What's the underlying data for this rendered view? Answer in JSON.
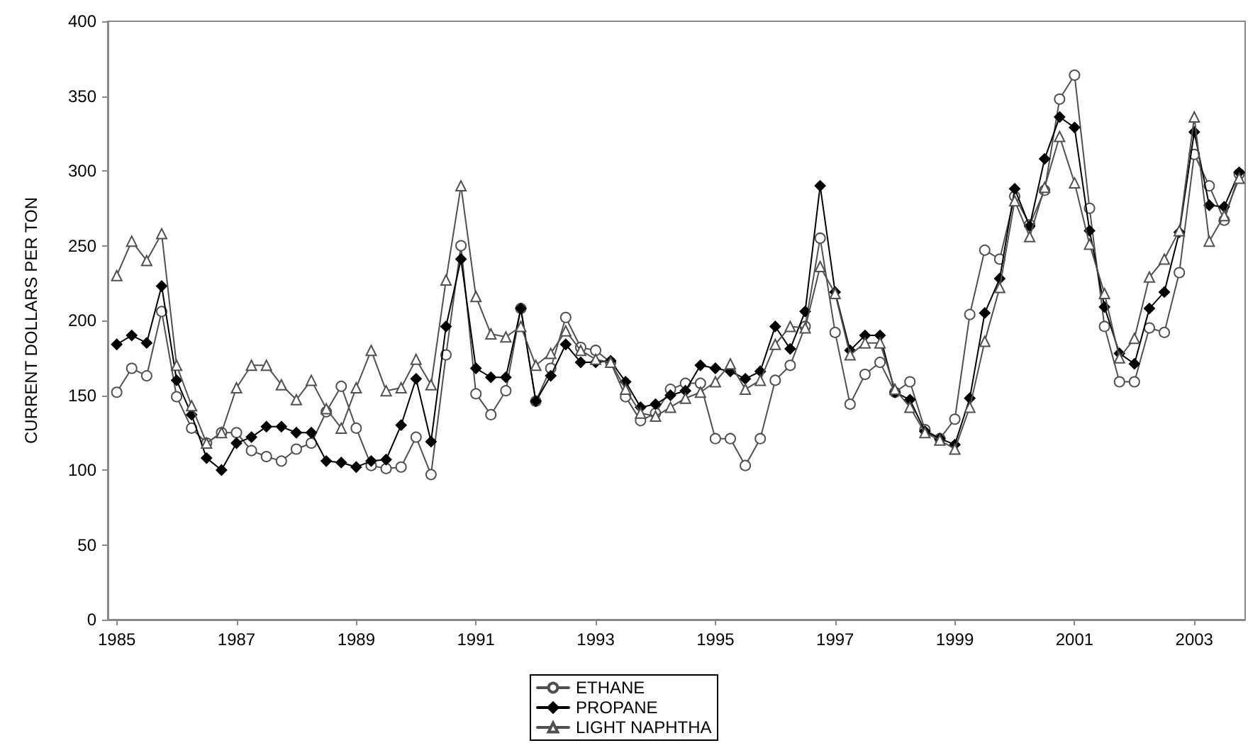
{
  "chart_data": {
    "type": "line",
    "ylabel": "CURRENT DOLLARS PER TON",
    "x": [
      1985,
      1985.25,
      1985.5,
      1985.75,
      1986,
      1986.25,
      1986.5,
      1986.75,
      1987,
      1987.25,
      1987.5,
      1987.75,
      1988,
      1988.25,
      1988.5,
      1988.75,
      1989,
      1989.25,
      1989.5,
      1989.75,
      1990,
      1990.25,
      1990.5,
      1990.75,
      1991,
      1991.25,
      1991.5,
      1991.75,
      1992,
      1992.25,
      1992.5,
      1992.75,
      1993,
      1993.25,
      1993.5,
      1993.75,
      1994,
      1994.25,
      1994.5,
      1994.75,
      1995,
      1995.25,
      1995.5,
      1995.75,
      1996,
      1996.25,
      1996.5,
      1996.75,
      1997,
      1997.25,
      1997.5,
      1997.75,
      1998,
      1998.25,
      1998.5,
      1998.75,
      1999,
      1999.25,
      1999.5,
      1999.75,
      2000,
      2000.25,
      2000.5,
      2000.75,
      2001,
      2001.25,
      2001.5,
      2001.75,
      2002,
      2002.25,
      2002.5,
      2002.75,
      2003,
      2003.25,
      2003.5,
      2003.75
    ],
    "series": [
      {
        "name": "ETHANE",
        "color": "#505050",
        "marker": "circle",
        "values": [
          152,
          168,
          163,
          206,
          149,
          128,
          118,
          125,
          125,
          113,
          109,
          106,
          114,
          118,
          139,
          156,
          128,
          103,
          101,
          102,
          122,
          97,
          177,
          250,
          151,
          137,
          153,
          208,
          146,
          168,
          202,
          182,
          180,
          172,
          149,
          133,
          138,
          154,
          158,
          158,
          121,
          121,
          103,
          121,
          160,
          170,
          196,
          255,
          192,
          144,
          164,
          172,
          152,
          159,
          127,
          121,
          134,
          204,
          247,
          241,
          283,
          264,
          287,
          348,
          364,
          275,
          196,
          159,
          159,
          195,
          192,
          232,
          311,
          290,
          267,
          298
        ]
      },
      {
        "name": "PROPANE",
        "color": "#000000",
        "marker": "diamond",
        "values": [
          184,
          190,
          185,
          223,
          160,
          137,
          108,
          100,
          118,
          122,
          129,
          129,
          125,
          125,
          106,
          105,
          102,
          106,
          107,
          130,
          161,
          119,
          196,
          241,
          168,
          162,
          162,
          208,
          146,
          163,
          184,
          172,
          172,
          173,
          159,
          142,
          144,
          150,
          153,
          170,
          168,
          166,
          161,
          166,
          196,
          181,
          206,
          290,
          219,
          180,
          190,
          190,
          152,
          147,
          126,
          121,
          117,
          148,
          205,
          228,
          288,
          263,
          308,
          336,
          329,
          260,
          209,
          178,
          171,
          208,
          219,
          259,
          326,
          277,
          276,
          299
        ]
      },
      {
        "name": "LIGHT NAPHTHA",
        "color": "#505050",
        "marker": "triangle",
        "values": [
          230,
          253,
          240,
          258,
          170,
          143,
          118,
          125,
          155,
          170,
          170,
          157,
          147,
          160,
          141,
          128,
          155,
          180,
          153,
          155,
          174,
          157,
          227,
          290,
          216,
          191,
          189,
          196,
          170,
          178,
          193,
          180,
          174,
          172,
          154,
          138,
          136,
          142,
          148,
          152,
          159,
          171,
          154,
          160,
          184,
          196,
          195,
          236,
          218,
          177,
          185,
          185,
          154,
          142,
          125,
          120,
          114,
          142,
          186,
          222,
          280,
          256,
          289,
          323,
          292,
          251,
          218,
          175,
          188,
          229,
          241,
          260,
          336,
          253,
          270,
          295
        ]
      }
    ],
    "xlim": [
      1984.85,
      2003.85
    ],
    "xticks": [
      1985,
      1987,
      1989,
      1991,
      1993,
      1995,
      1997,
      1999,
      2001,
      2003
    ],
    "ylim": [
      0,
      400
    ],
    "yticks": [
      0,
      50,
      100,
      150,
      200,
      250,
      300,
      350,
      400
    ],
    "grid": false,
    "legend": "bottom",
    "line_style": "solid"
  }
}
